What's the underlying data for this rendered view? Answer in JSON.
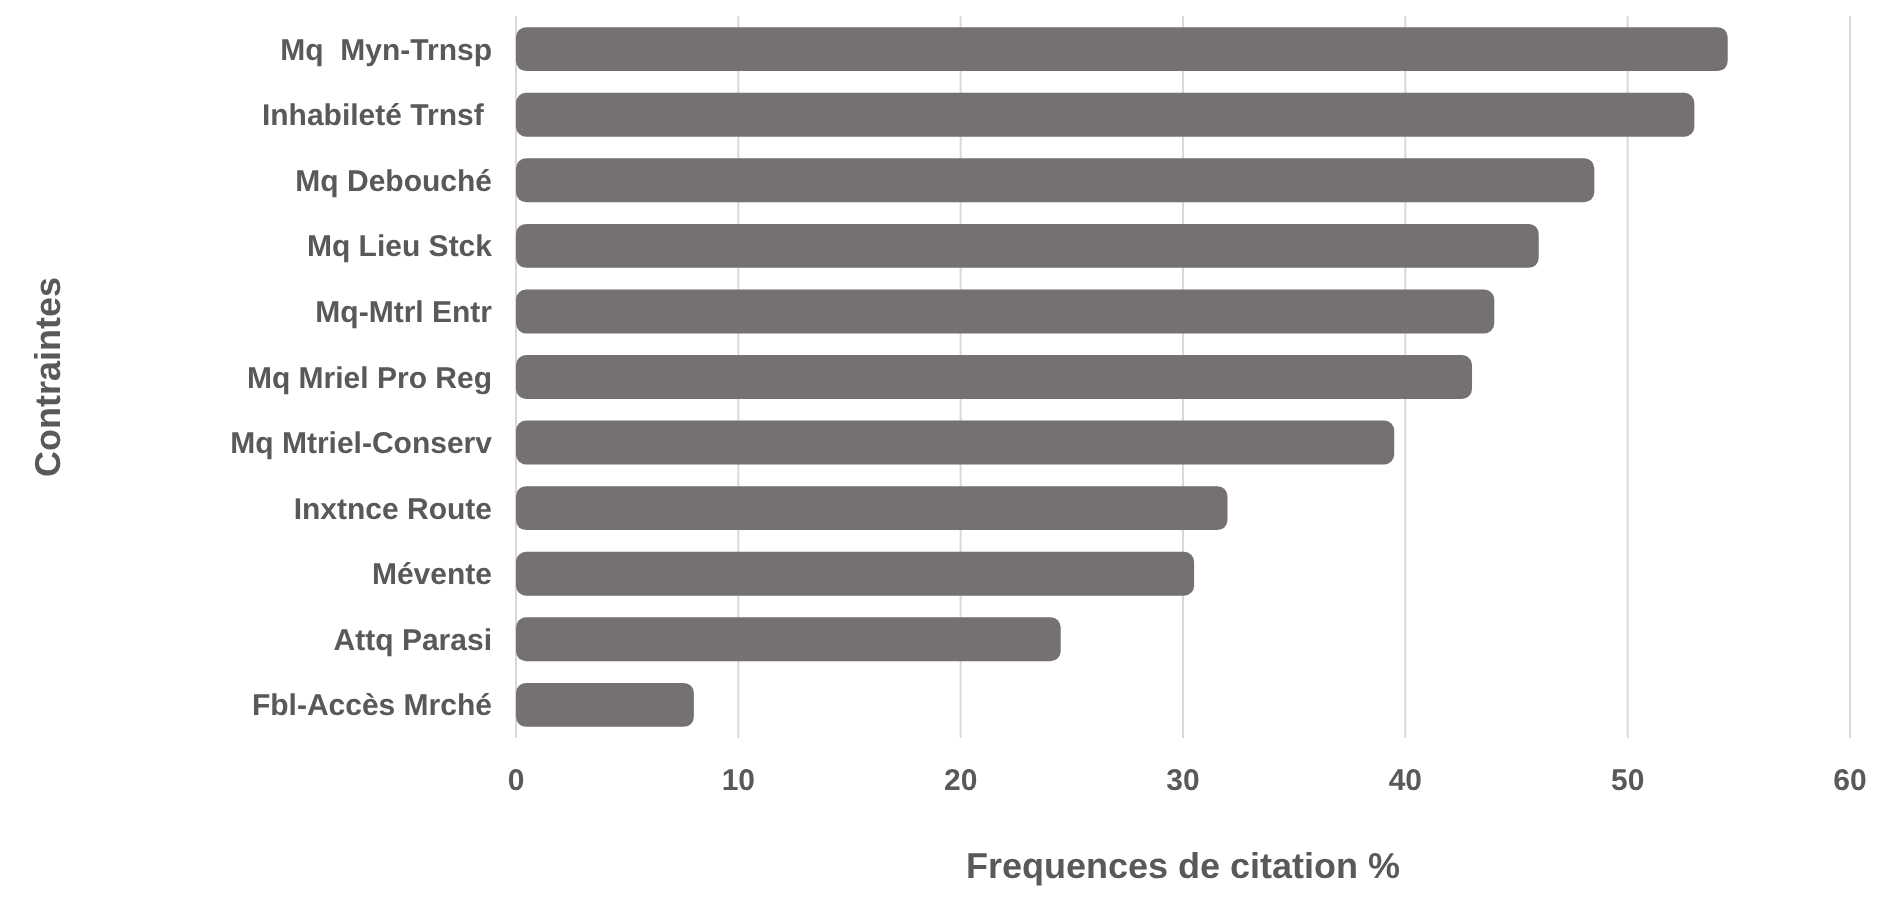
{
  "chart_data": {
    "type": "bar",
    "orientation": "horizontal",
    "xlabel": "Frequences de citation %",
    "ylabel": "Contraintes",
    "categories": [
      "Mq  Myn-Trnsp",
      "Inhabileté Trnsf ",
      "Mq Debouché",
      "Mq Lieu Stck",
      "Mq-Mtrl Entr",
      "Mq Mriel Pro Reg",
      "Mq Mtriel-Conserv",
      "Inxtnce Route",
      "Mévente",
      "Attq Parasi",
      "Fbl-Accès Mrché"
    ],
    "values": [
      54.5,
      53,
      48.5,
      46,
      44,
      43,
      39.5,
      32,
      30.5,
      24.5,
      8
    ],
    "color": "#767171",
    "xlim": [
      0,
      60
    ],
    "xticks": [
      0,
      10,
      20,
      30,
      40,
      50,
      60
    ],
    "grid": "x"
  }
}
